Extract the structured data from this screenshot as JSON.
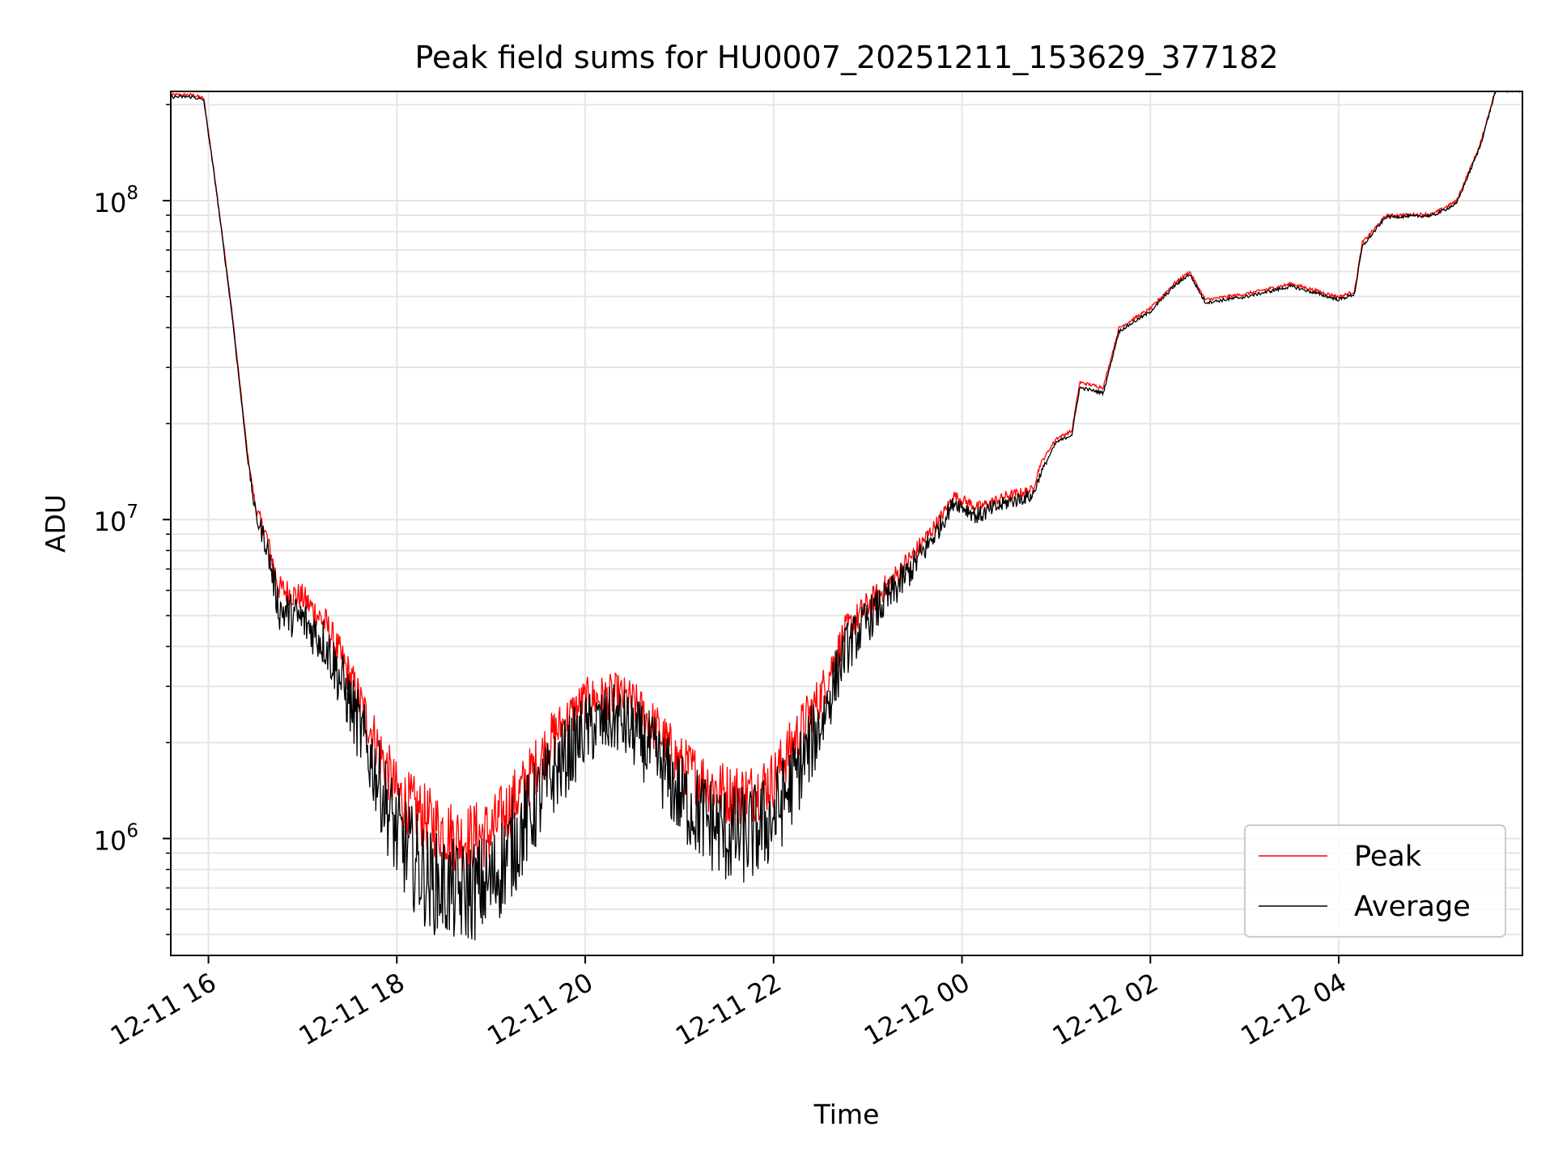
{
  "chart_data": {
    "type": "line",
    "title": "Peak field sums for HU0007_20251211_153629_377182",
    "xlabel": "Time",
    "ylabel": "ADU",
    "yscale": "log",
    "xlim": [
      "2025-12-11 15:36",
      "2025-12-12 05:57"
    ],
    "ylim": [
      430000,
      220000000
    ],
    "grid": true,
    "legend_position": "lower right",
    "x_ticks": [
      {
        "time": "2025-12-11 16:00",
        "label": "12-11 16"
      },
      {
        "time": "2025-12-11 18:00",
        "label": "12-11 18"
      },
      {
        "time": "2025-12-11 20:00",
        "label": "12-11 20"
      },
      {
        "time": "2025-12-11 22:00",
        "label": "12-11 22"
      },
      {
        "time": "2025-12-12 00:00",
        "label": "12-12 00"
      },
      {
        "time": "2025-12-12 02:00",
        "label": "12-12 02"
      },
      {
        "time": "2025-12-12 04:00",
        "label": "12-12 04"
      }
    ],
    "y_ticks": [
      {
        "value": 1000000,
        "base": "10",
        "exp": "6"
      },
      {
        "value": 10000000,
        "base": "10",
        "exp": "7"
      },
      {
        "value": 100000000,
        "base": "10",
        "exp": "8"
      }
    ],
    "series": [
      {
        "name": "Peak",
        "color": "#ff0000",
        "noise": 0.22,
        "x": [
          "2025-12-11 15:36",
          "2025-12-11 15:50",
          "2025-12-11 15:57",
          "2025-12-11 16:05",
          "2025-12-11 16:15",
          "2025-12-11 16:25",
          "2025-12-11 16:30",
          "2025-12-11 16:37",
          "2025-12-11 16:45",
          "2025-12-11 17:00",
          "2025-12-11 17:15",
          "2025-12-11 17:30",
          "2025-12-11 17:45",
          "2025-12-11 18:00",
          "2025-12-11 18:20",
          "2025-12-11 18:40",
          "2025-12-11 19:00",
          "2025-12-11 19:20",
          "2025-12-11 19:40",
          "2025-12-11 20:00",
          "2025-12-11 20:20",
          "2025-12-11 20:30",
          "2025-12-11 20:45",
          "2025-12-11 21:00",
          "2025-12-11 21:15",
          "2025-12-11 21:30",
          "2025-12-11 21:45",
          "2025-12-11 22:00",
          "2025-12-11 22:15",
          "2025-12-11 22:30",
          "2025-12-11 22:45",
          "2025-12-11 23:00",
          "2025-12-11 23:15",
          "2025-12-11 23:30",
          "2025-12-11 23:45",
          "2025-12-11 23:55",
          "2025-12-12 00:10",
          "2025-12-12 00:30",
          "2025-12-12 00:45",
          "2025-12-12 00:50",
          "2025-12-12 01:00",
          "2025-12-12 01:10",
          "2025-12-12 01:15",
          "2025-12-12 01:30",
          "2025-12-12 01:40",
          "2025-12-12 02:00",
          "2025-12-12 02:15",
          "2025-12-12 02:25",
          "2025-12-12 02:35",
          "2025-12-12 03:00",
          "2025-12-12 03:30",
          "2025-12-12 04:00",
          "2025-12-12 04:10",
          "2025-12-12 04:15",
          "2025-12-12 04:30",
          "2025-12-12 05:00",
          "2025-12-12 05:15",
          "2025-12-12 05:30",
          "2025-12-12 05:40",
          "2025-12-12 05:57"
        ],
        "y": [
          215000000,
          215000000,
          210000000,
          110000000,
          45000000,
          16000000,
          11000000,
          9000000,
          6200000,
          5800000,
          4800000,
          3300000,
          2200000,
          1450000,
          1200000,
          1050000,
          1100000,
          1500000,
          2200000,
          2800000,
          2900000,
          2750000,
          2300000,
          1800000,
          1600000,
          1450000,
          1450000,
          1600000,
          2200000,
          2900000,
          4500000,
          5500000,
          6500000,
          8000000,
          10000000,
          12000000,
          11000000,
          12000000,
          12500000,
          15000000,
          18000000,
          19000000,
          27000000,
          26000000,
          40000000,
          46000000,
          55000000,
          60000000,
          49000000,
          51000000,
          55000000,
          50000000,
          52000000,
          74000000,
          90000000,
          91000000,
          100000000,
          150000000,
          225000000,
          225000000
        ]
      },
      {
        "name": "Average",
        "color": "#000000",
        "noise": 0.32,
        "x": [
          "2025-12-11 15:36",
          "2025-12-11 15:50",
          "2025-12-11 15:57",
          "2025-12-11 16:05",
          "2025-12-11 16:15",
          "2025-12-11 16:25",
          "2025-12-11 16:30",
          "2025-12-11 16:37",
          "2025-12-11 16:45",
          "2025-12-11 17:00",
          "2025-12-11 17:15",
          "2025-12-11 17:30",
          "2025-12-11 17:45",
          "2025-12-11 18:00",
          "2025-12-11 18:20",
          "2025-12-11 18:40",
          "2025-12-11 19:00",
          "2025-12-11 19:20",
          "2025-12-11 19:40",
          "2025-12-11 20:00",
          "2025-12-11 20:20",
          "2025-12-11 20:30",
          "2025-12-11 20:45",
          "2025-12-11 21:00",
          "2025-12-11 21:15",
          "2025-12-11 21:30",
          "2025-12-11 21:45",
          "2025-12-11 22:00",
          "2025-12-11 22:15",
          "2025-12-11 22:30",
          "2025-12-11 22:45",
          "2025-12-11 23:00",
          "2025-12-11 23:15",
          "2025-12-11 23:30",
          "2025-12-11 23:45",
          "2025-12-11 23:55",
          "2025-12-12 00:10",
          "2025-12-12 00:30",
          "2025-12-12 00:45",
          "2025-12-12 00:50",
          "2025-12-12 01:00",
          "2025-12-12 01:10",
          "2025-12-12 01:15",
          "2025-12-12 01:30",
          "2025-12-12 01:40",
          "2025-12-12 02:00",
          "2025-12-12 02:15",
          "2025-12-12 02:25",
          "2025-12-12 02:35",
          "2025-12-12 03:00",
          "2025-12-12 03:30",
          "2025-12-12 04:00",
          "2025-12-12 04:10",
          "2025-12-12 04:15",
          "2025-12-12 04:30",
          "2025-12-12 05:00",
          "2025-12-12 05:15",
          "2025-12-12 05:30",
          "2025-12-12 05:40",
          "2025-12-12 05:57"
        ],
        "y": [
          212000000,
          212000000,
          207000000,
          108000000,
          44000000,
          15500000,
          10500000,
          8500000,
          5400000,
          5000000,
          4200000,
          2800000,
          1800000,
          1100000,
          800000,
          720000,
          780000,
          1150000,
          1700000,
          2300000,
          2500000,
          2300000,
          1900000,
          1450000,
          1250000,
          1100000,
          1100000,
          1250000,
          1700000,
          2400000,
          4000000,
          5000000,
          6000000,
          7400000,
          9500000,
          11500000,
          10400000,
          11500000,
          12000000,
          14000000,
          17500000,
          18500000,
          26000000,
          25000000,
          39000000,
          45000000,
          54000000,
          59000000,
          48000000,
          50000000,
          54000000,
          49000000,
          51000000,
          72000000,
          89000000,
          90000000,
          98000000,
          148000000,
          222000000,
          222000000
        ]
      }
    ]
  }
}
